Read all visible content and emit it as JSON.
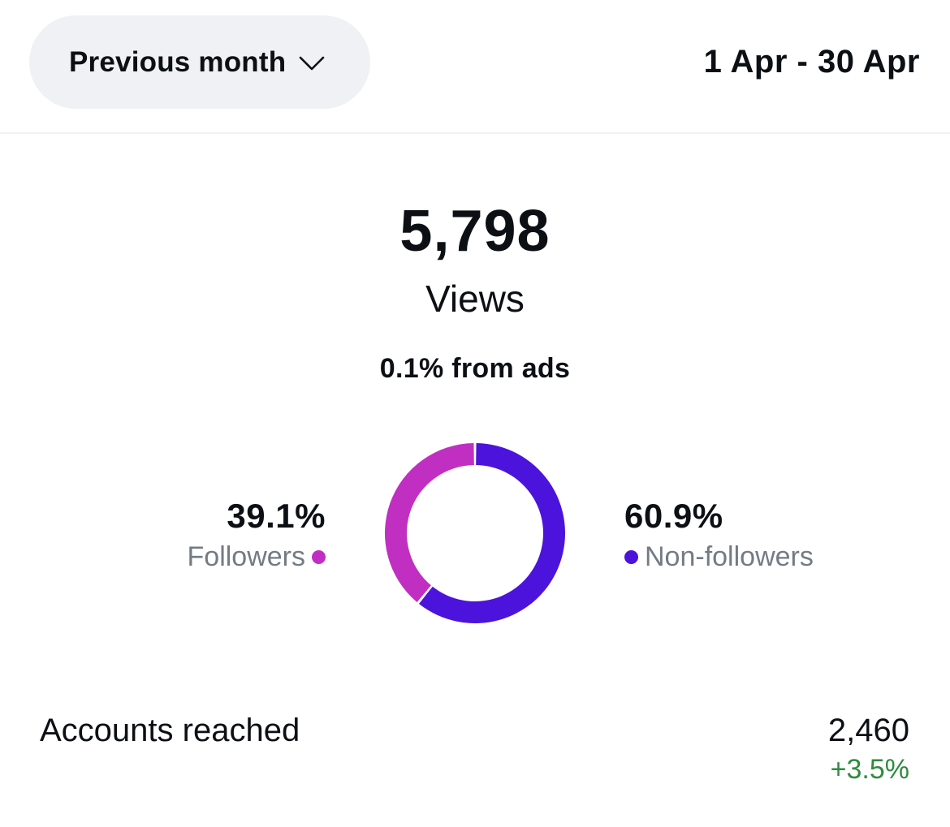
{
  "header": {
    "period_selector": "Previous month",
    "date_range": "1 Apr - 30 Apr"
  },
  "views": {
    "value": "5,798",
    "label": "Views",
    "ads_note": "0.1% from ads"
  },
  "chart_data": {
    "type": "pie",
    "categories": [
      "Followers",
      "Non-followers"
    ],
    "values": [
      39.1,
      60.9
    ],
    "value_labels": [
      "39.1%",
      "60.9%"
    ],
    "colors": [
      "#c02fc2",
      "#4c13dc"
    ]
  },
  "legend": {
    "followers_pct": "39.1%",
    "followers_label": "Followers",
    "non_followers_pct": "60.9%",
    "non_followers_label": "Non-followers"
  },
  "accounts_reached": {
    "label": "Accounts reached",
    "value": "2,460",
    "change": "+3.5%",
    "change_color": "#2e8b3f"
  },
  "icons": {
    "period_selector": "chevron-down-icon"
  }
}
